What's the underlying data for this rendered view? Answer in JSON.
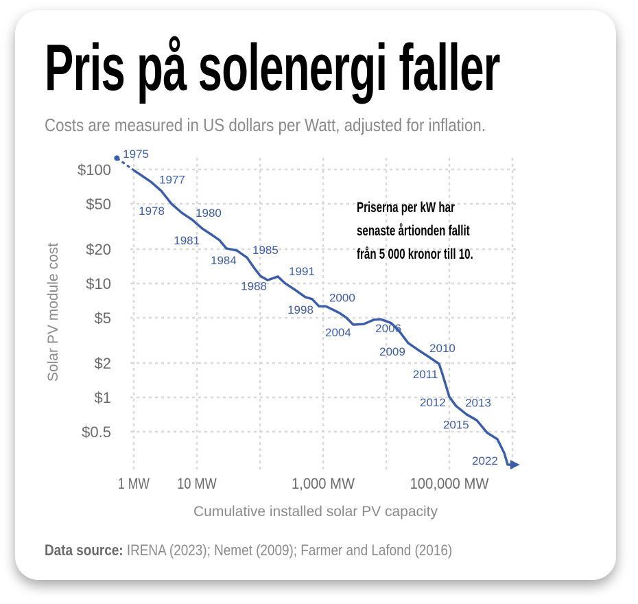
{
  "title": "Pris på solenergi faller",
  "subtitle": "Costs are measured in US dollars per Watt, adjusted for inflation.",
  "annotation_note": [
    "Priserna per kW har",
    "senaste årtionden fallit",
    "från 5 000 kronor till 10."
  ],
  "source": {
    "label": "Data source:",
    "text": " IRENA (2023); Nemet (2009); Farmer and Lafond (2016)"
  },
  "colors": {
    "line": "#3c5ea8",
    "grid": "#d9d9d9",
    "axis_text": "#6b6b6b"
  },
  "chart_data": {
    "type": "line",
    "xscale": "log",
    "yscale": "log",
    "xlabel": "Cumulative installed solar PV capacity",
    "ylabel": "Solar PV module cost",
    "xlim": [
      0.5,
      1200000
    ],
    "ylim": [
      0.25,
      140
    ],
    "x_grid": [
      1,
      10,
      100,
      1000,
      10000,
      100000,
      1000000
    ],
    "x_ticks": [
      {
        "value": 1,
        "label": "1 MW"
      },
      {
        "value": 10,
        "label": "10 MW"
      },
      {
        "value": 1000,
        "label": "1,000 MW"
      },
      {
        "value": 100000,
        "label": "100,000 MW"
      }
    ],
    "y_ticks": [
      {
        "value": 100,
        "label": "$100"
      },
      {
        "value": 50,
        "label": "$50"
      },
      {
        "value": 20,
        "label": "$20"
      },
      {
        "value": 10,
        "label": "$10"
      },
      {
        "value": 5,
        "label": "$5"
      },
      {
        "value": 2,
        "label": "$2"
      },
      {
        "value": 1,
        "label": "$1"
      },
      {
        "value": 0.5,
        "label": "$0.5"
      }
    ],
    "grid": true,
    "series": [
      {
        "name": "Solar PV module cost",
        "dashed_start": [
          [
            0.54,
            126
          ],
          [
            1,
            98.6
          ]
        ],
        "points": [
          [
            1,
            98.6
          ],
          [
            1.87,
            78
          ],
          [
            2.72,
            65
          ],
          [
            3.96,
            50
          ],
          [
            5.77,
            41.7
          ],
          [
            8.4,
            36.3
          ],
          [
            12.2,
            30.3
          ],
          [
            17.8,
            26.4
          ],
          [
            22.8,
            24
          ],
          [
            29.3,
            20.3
          ],
          [
            42.7,
            19.5
          ],
          [
            62,
            16.9
          ],
          [
            80,
            13.8
          ],
          [
            102,
            11.6
          ],
          [
            132,
            10.7
          ],
          [
            192,
            11.5
          ],
          [
            246,
            10.1
          ],
          [
            358,
            8.8
          ],
          [
            521,
            7.6
          ],
          [
            670,
            7.3
          ],
          [
            861,
            6.3
          ],
          [
            1105,
            6.3
          ],
          [
            1420,
            5.9
          ],
          [
            1820,
            5.5
          ],
          [
            2340,
            5.0
          ],
          [
            3000,
            4.35
          ],
          [
            4380,
            4.4
          ],
          [
            6370,
            4.8
          ],
          [
            8190,
            4.85
          ],
          [
            11900,
            4.5
          ],
          [
            15300,
            3.95
          ],
          [
            22300,
            3.0
          ],
          [
            32400,
            2.6
          ],
          [
            47200,
            2.27
          ],
          [
            68700,
            1.97
          ],
          [
            77800,
            1.6
          ],
          [
            100000,
            1.01
          ],
          [
            128000,
            0.84
          ],
          [
            187000,
            0.71
          ],
          [
            272000,
            0.63
          ],
          [
            396000,
            0.49
          ],
          [
            577000,
            0.43
          ],
          [
            741000,
            0.325
          ],
          [
            840000,
            0.257
          ],
          [
            1070000,
            0.257
          ]
        ]
      }
    ],
    "year_labels": [
      {
        "year": "1975",
        "x": 1.08,
        "y": 138
      },
      {
        "year": "1977",
        "x": 4.06,
        "y": 82
      },
      {
        "year": "1978",
        "x": 1.92,
        "y": 43.5
      },
      {
        "year": "1980",
        "x": 15.3,
        "y": 41.7
      },
      {
        "year": "1981",
        "x": 6.9,
        "y": 24
      },
      {
        "year": "1984",
        "x": 26.5,
        "y": 16
      },
      {
        "year": "1985",
        "x": 122,
        "y": 19.7
      },
      {
        "year": "1988",
        "x": 80,
        "y": 9.5
      },
      {
        "year": "1991",
        "x": 460,
        "y": 12.8
      },
      {
        "year": "1998",
        "x": 438,
        "y": 5.9
      },
      {
        "year": "2000",
        "x": 2010,
        "y": 7.5
      },
      {
        "year": "2004",
        "x": 1730,
        "y": 3.73
      },
      {
        "year": "2006",
        "x": 10800,
        "y": 4.06
      },
      {
        "year": "2009",
        "x": 12500,
        "y": 2.54
      },
      {
        "year": "2010",
        "x": 77800,
        "y": 2.72
      },
      {
        "year": "2011",
        "x": 41700,
        "y": 1.6
      },
      {
        "year": "2012",
        "x": 54800,
        "y": 0.91
      },
      {
        "year": "2013",
        "x": 286000,
        "y": 0.9
      },
      {
        "year": "2015",
        "x": 128000,
        "y": 0.58
      },
      {
        "year": "2022",
        "x": 367000,
        "y": 0.28
      }
    ]
  }
}
